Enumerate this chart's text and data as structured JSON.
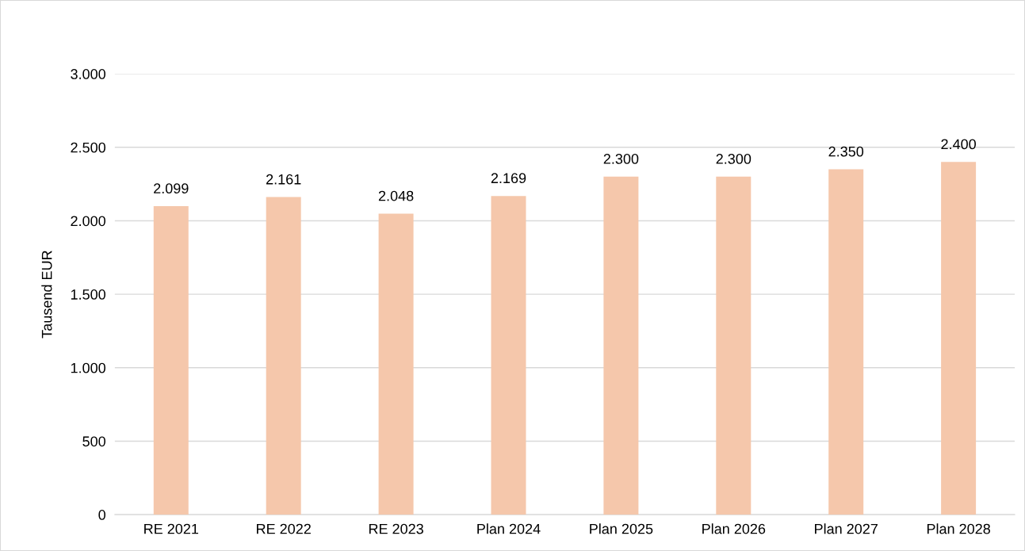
{
  "chart_data": {
    "type": "bar",
    "ylabel": "Tausend EUR",
    "categories": [
      "RE 2021",
      "RE 2022",
      "RE 2023",
      "Plan 2024",
      "Plan 2025",
      "Plan 2026",
      "Plan 2027",
      "Plan 2028"
    ],
    "values": [
      2099,
      2161,
      2048,
      2169,
      2300,
      2300,
      2350,
      2400
    ],
    "value_labels": [
      "2.099",
      "2.161",
      "2.048",
      "2.169",
      "2.300",
      "2.300",
      "2.350",
      "2.400"
    ],
    "color": "#f5c7ab",
    "ylim": [
      0,
      3000
    ],
    "yticks": [
      {
        "value": 0,
        "label": "0"
      },
      {
        "value": 500,
        "label": "500"
      },
      {
        "value": 1000,
        "label": "1.000"
      },
      {
        "value": 1500,
        "label": "1.500"
      },
      {
        "value": 2000,
        "label": "2.000"
      },
      {
        "value": 2500,
        "label": "2.500"
      },
      {
        "value": 3000,
        "label": "3.000"
      }
    ],
    "grid": "y",
    "legend": false
  }
}
